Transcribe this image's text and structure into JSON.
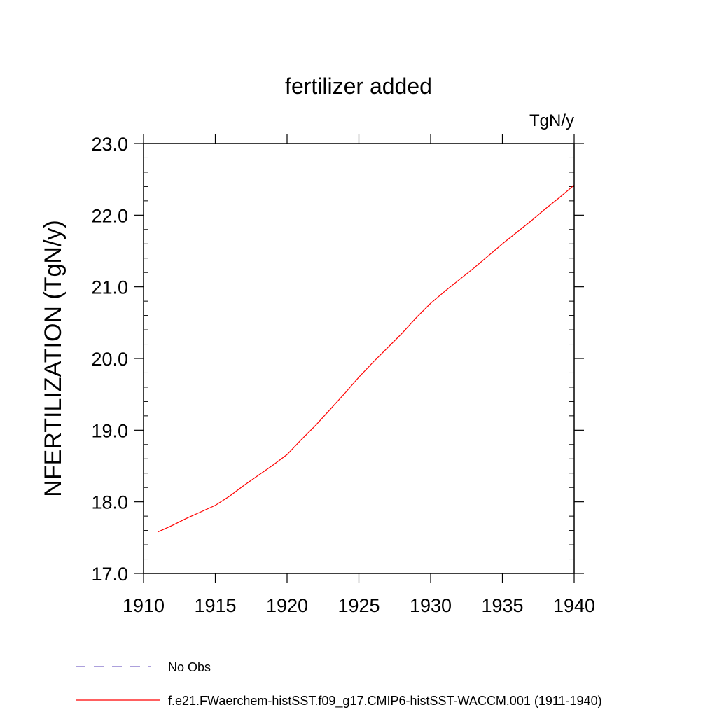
{
  "chart_data": {
    "type": "line",
    "title": "fertilizer added",
    "units": "TgN/y",
    "ylabel": "NFERTILIZATION  (TgN/y)",
    "xlabel": "",
    "xlim": [
      1910,
      1940
    ],
    "ylim": [
      17.0,
      23.0
    ],
    "x_ticks": [
      "1910",
      "1915",
      "1920",
      "1925",
      "1930",
      "1935",
      "1940"
    ],
    "y_ticks": [
      "17.0",
      "18.0",
      "19.0",
      "20.0",
      "21.0",
      "22.0",
      "23.0"
    ],
    "grid": false,
    "legend_position": "bottom-left",
    "series": [
      {
        "name": "f.e21.FWaerchem-histSST.f09_g17.CMIP6-histSST-WACCM.001 (1911-1940)",
        "color": "#ff0000",
        "style": "solid",
        "x": [
          1911,
          1912,
          1913,
          1914,
          1915,
          1916,
          1917,
          1918,
          1919,
          1920,
          1921,
          1922,
          1923,
          1924,
          1925,
          1926,
          1927,
          1928,
          1929,
          1930,
          1931,
          1932,
          1933,
          1934,
          1935,
          1936,
          1937,
          1938,
          1939,
          1940
        ],
        "y": [
          17.58,
          17.67,
          17.77,
          17.86,
          17.95,
          18.08,
          18.23,
          18.37,
          18.51,
          18.66,
          18.87,
          19.07,
          19.29,
          19.51,
          19.74,
          19.95,
          20.15,
          20.35,
          20.57,
          20.77,
          20.94,
          21.1,
          21.26,
          21.43,
          21.6,
          21.76,
          21.92,
          22.09,
          22.25,
          22.42
        ]
      },
      {
        "name": "No Obs",
        "color": "#7b68c8",
        "style": "dashed",
        "x": [],
        "y": []
      }
    ]
  }
}
